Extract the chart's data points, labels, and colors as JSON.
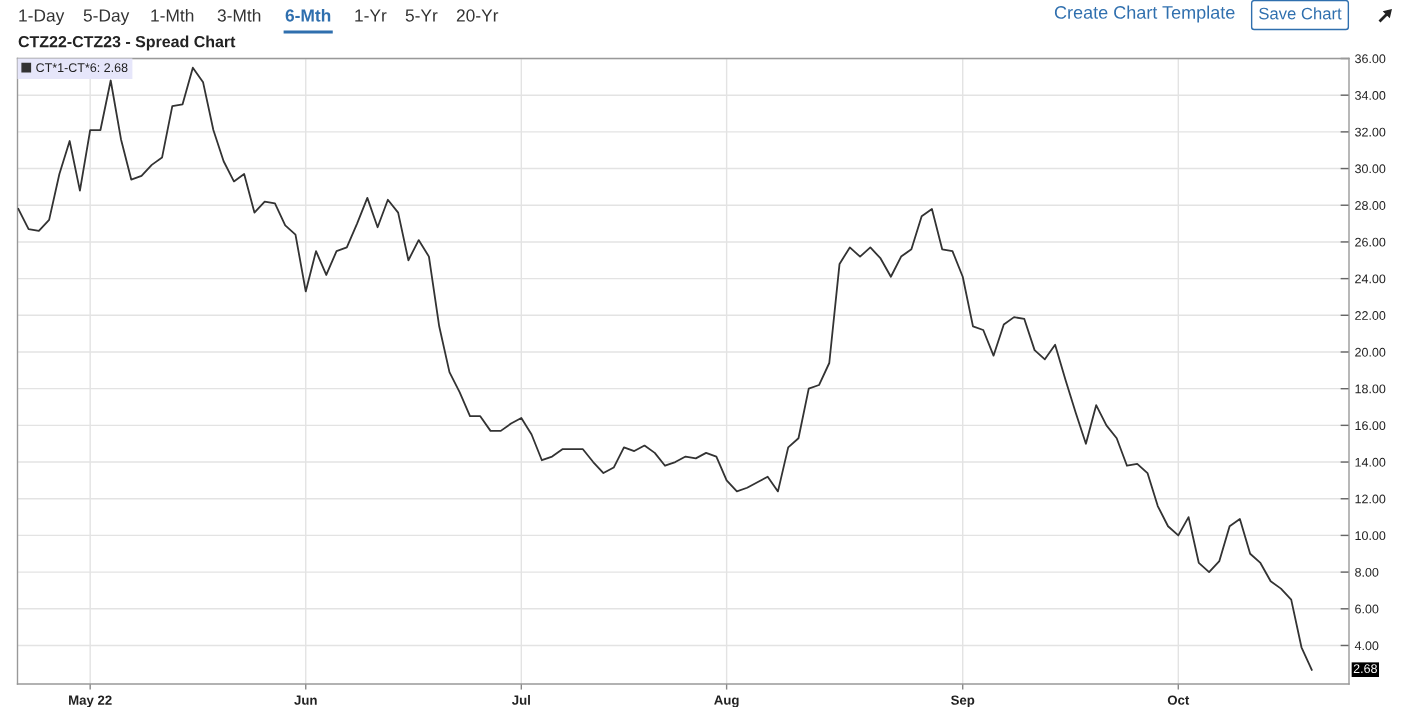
{
  "chart_data": {
    "type": "line",
    "title": "CTZ22-CTZ23 - Spread Chart",
    "categories": [
      null,
      null,
      null,
      null,
      null,
      null,
      null,
      "May 22",
      null,
      null,
      null,
      null,
      null,
      null,
      null,
      null,
      null,
      null,
      null,
      null,
      null,
      null,
      null,
      null,
      null,
      null,
      null,
      null,
      "Jun",
      null,
      null,
      null,
      null,
      null,
      null,
      null,
      null,
      null,
      null,
      null,
      null,
      null,
      null,
      null,
      null,
      null,
      null,
      null,
      null,
      "Jul",
      null,
      null,
      null,
      null,
      null,
      null,
      null,
      null,
      null,
      null,
      null,
      null,
      null,
      null,
      null,
      null,
      null,
      null,
      null,
      "Aug",
      null,
      null,
      null,
      null,
      null,
      null,
      null,
      null,
      null,
      null,
      null,
      null,
      null,
      null,
      null,
      null,
      null,
      null,
      null,
      null,
      null,
      null,
      "Sep",
      null,
      null,
      null,
      null,
      null,
      null,
      null,
      null,
      null,
      null,
      null,
      null,
      null,
      null,
      null,
      null,
      null,
      null,
      null,
      null,
      "Oct",
      null,
      null,
      null,
      null,
      null,
      null,
      null,
      null,
      null,
      null,
      null,
      null,
      null
    ],
    "series": [
      {
        "name": "CT*1-CT*6: 2.68",
        "color": "#333333",
        "values": [
          27.8,
          26.7,
          26.6,
          27.2,
          29.7,
          31.5,
          28.8,
          32.1,
          32.1,
          34.8,
          31.6,
          29.4,
          29.6,
          30.2,
          30.6,
          33.4,
          33.5,
          35.5,
          34.7,
          32.1,
          30.4,
          29.3,
          29.7,
          27.6,
          28.2,
          28.1,
          26.9,
          26.4,
          23.3,
          25.5,
          24.2,
          25.5,
          25.7,
          27.0,
          28.4,
          26.8,
          28.3,
          27.6,
          25.0,
          26.1,
          25.2,
          21.4,
          18.9,
          17.8,
          16.5,
          16.5,
          15.7,
          15.7,
          16.1,
          16.4,
          15.5,
          14.1,
          14.3,
          14.7,
          14.7,
          14.7,
          14.0,
          13.4,
          13.7,
          14.8,
          14.6,
          14.9,
          14.5,
          13.8,
          14.0,
          14.3,
          14.2,
          14.5,
          14.3,
          13.0,
          12.4,
          12.6,
          12.9,
          13.2,
          12.4,
          14.8,
          15.3,
          18.0,
          18.2,
          19.4,
          24.8,
          25.7,
          25.2,
          25.7,
          25.1,
          24.1,
          25.2,
          25.6,
          27.4,
          27.8,
          25.6,
          25.5,
          24.1,
          21.4,
          21.2,
          19.8,
          21.5,
          21.9,
          21.8,
          20.1,
          19.6,
          20.4,
          18.5,
          16.7,
          15.0,
          17.1,
          16.0,
          15.3,
          13.8,
          13.9,
          13.4,
          11.6,
          10.5,
          10.0,
          11.0,
          8.5,
          8.0,
          8.6,
          10.5,
          10.9,
          9.0,
          8.5,
          7.5,
          7.1,
          6.5,
          3.9,
          2.68
        ]
      }
    ],
    "ylim": [
      1.9,
      36
    ],
    "yticks": [
      {
        "value": 4,
        "label": "4.00"
      },
      {
        "value": 6,
        "label": "6.00"
      },
      {
        "value": 8,
        "label": "8.00"
      },
      {
        "value": 10,
        "label": "10.00"
      },
      {
        "value": 12,
        "label": "12.00"
      },
      {
        "value": 14,
        "label": "14.00"
      },
      {
        "value": 16,
        "label": "16.00"
      },
      {
        "value": 18,
        "label": "18.00"
      },
      {
        "value": 20,
        "label": "20.00"
      },
      {
        "value": 22,
        "label": "22.00"
      },
      {
        "value": 24,
        "label": "24.00"
      },
      {
        "value": 26,
        "label": "26.00"
      },
      {
        "value": 28,
        "label": "28.00"
      },
      {
        "value": 30,
        "label": "30.00"
      },
      {
        "value": 32,
        "label": "32.00"
      },
      {
        "value": 34,
        "label": "34.00"
      },
      {
        "value": 36,
        "label": "36.00"
      }
    ],
    "grid": true,
    "legend": "top left",
    "annotations": [
      "1-Day",
      "5-Day",
      "1-Mth",
      "3-Mth",
      "6-Mth",
      "1-Yr",
      "5-Yr",
      "20-Yr",
      "Create Chart Template",
      "Save Chart",
      "2.68"
    ]
  }
}
